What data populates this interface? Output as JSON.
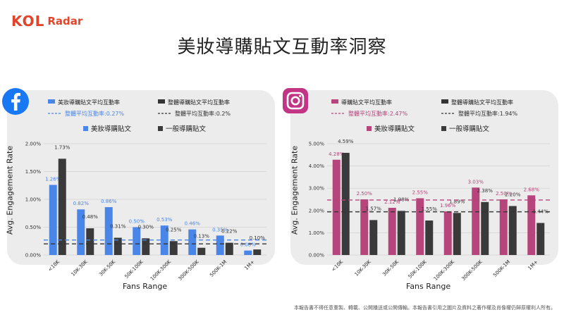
{
  "brand": {
    "kol": "KOL",
    "radar": "Radar",
    "color": "#e0452b"
  },
  "page_title": "美妝導購貼文互動率洞察",
  "y_axis_label": "Avg. Engagement Rate",
  "x_axis_label": "Fans Range",
  "footnote": "本報告書不得任意重製、轉載、公開播送或公開傳輸。本報告書引用之圖片及資料之著作權及肖像權仍歸原權利人所有。",
  "icons": {
    "facebook": "facebook-logo-icon",
    "instagram": "instagram-logo-icon"
  },
  "chart_data": [
    {
      "type": "bar",
      "platform": "facebook",
      "categories": [
        "<10K",
        "10K-30K",
        "30K-50K",
        "50K-100K",
        "100K-300K",
        "300K-500K",
        "500K-1M",
        "1M+"
      ],
      "series": [
        {
          "name": "美妝導購貼文",
          "values": [
            1.26,
            0.82,
            0.86,
            0.5,
            0.53,
            0.46,
            0.35,
            0.08
          ],
          "labels": [
            "1.26%",
            "0.82%",
            "0.86%",
            "0.50%",
            "0.53%",
            "0.46%",
            "0.35%",
            "0.08%"
          ],
          "color": "#4a86e8"
        },
        {
          "name": "一般導購貼文",
          "values": [
            1.73,
            0.48,
            0.31,
            0.3,
            0.25,
            0.13,
            0.22,
            0.1
          ],
          "labels": [
            "1.73%",
            "0.48%",
            "0.31%",
            "0.30%",
            "0.25%",
            "0.13%",
            "0.22%",
            "0.10%"
          ],
          "color": "#3a3a3a"
        }
      ],
      "legend_top": [
        {
          "label": "美妝導購貼文平均互動率",
          "color": "#4a86e8",
          "style": "solid"
        },
        {
          "label": "整體導購貼文平均互動率",
          "color": "#333333",
          "style": "solid"
        }
      ],
      "reference_lines": [
        {
          "label": "整體平均互動率:0.27%",
          "value": 0.27,
          "color": "#4a86e8",
          "style": "dashed"
        },
        {
          "label": "整體平均互動率:0.2%",
          "value": 0.2,
          "color": "#333333",
          "style": "dashed"
        }
      ],
      "yticks": [
        "0.00%",
        "0.50%",
        "1.00%",
        "1.50%",
        "2.00%"
      ],
      "ylim": [
        0,
        2.0
      ],
      "ylabel": "Avg. Engagement Rate",
      "xlabel": "Fans Range",
      "grid": true
    },
    {
      "type": "bar",
      "platform": "instagram",
      "categories": [
        "<10K",
        "10K-30K",
        "30K-50K",
        "50K-100K",
        "100K-300K",
        "300K-500K",
        "500K-1M",
        "1M+"
      ],
      "series": [
        {
          "name": "美妝導購貼文",
          "values": [
            4.28,
            2.5,
            2.12,
            2.55,
            1.96,
            3.03,
            2.5,
            2.68
          ],
          "labels": [
            "4.28%",
            "2.50%",
            "2.12%",
            "2.55%",
            "1.96%",
            "3.03%",
            "2.50%",
            "2.68%"
          ],
          "color": "#b5457a"
        },
        {
          "name": "一般導購貼文",
          "values": [
            4.59,
            1.57,
            1.98,
            1.55,
            1.89,
            2.38,
            2.2,
            1.44
          ],
          "labels": [
            "4.59%",
            "1.57%",
            "1.98%",
            "1.55%",
            "1.89%",
            "2.38%",
            "2.20%",
            "1.44%"
          ],
          "color": "#3a3a3a"
        }
      ],
      "legend_top": [
        {
          "label": "導購貼文平均互動率",
          "color": "#b5457a",
          "style": "solid"
        },
        {
          "label": "整體導購貼文平均互動率",
          "color": "#333333",
          "style": "solid"
        }
      ],
      "reference_lines": [
        {
          "label": "整體平均互動率:2.47%",
          "value": 2.47,
          "color": "#b5457a",
          "style": "dashed"
        },
        {
          "label": "整體平均互動率:1.94%",
          "value": 1.94,
          "color": "#333333",
          "style": "dashed"
        }
      ],
      "yticks": [
        "0.00%",
        "1.00%",
        "2.00%",
        "3.00%",
        "4.00%",
        "5.00%"
      ],
      "ylim": [
        0,
        5.0
      ],
      "ylabel": "Avg. Engagement Rate",
      "xlabel": "Fans Range",
      "grid": true
    }
  ]
}
